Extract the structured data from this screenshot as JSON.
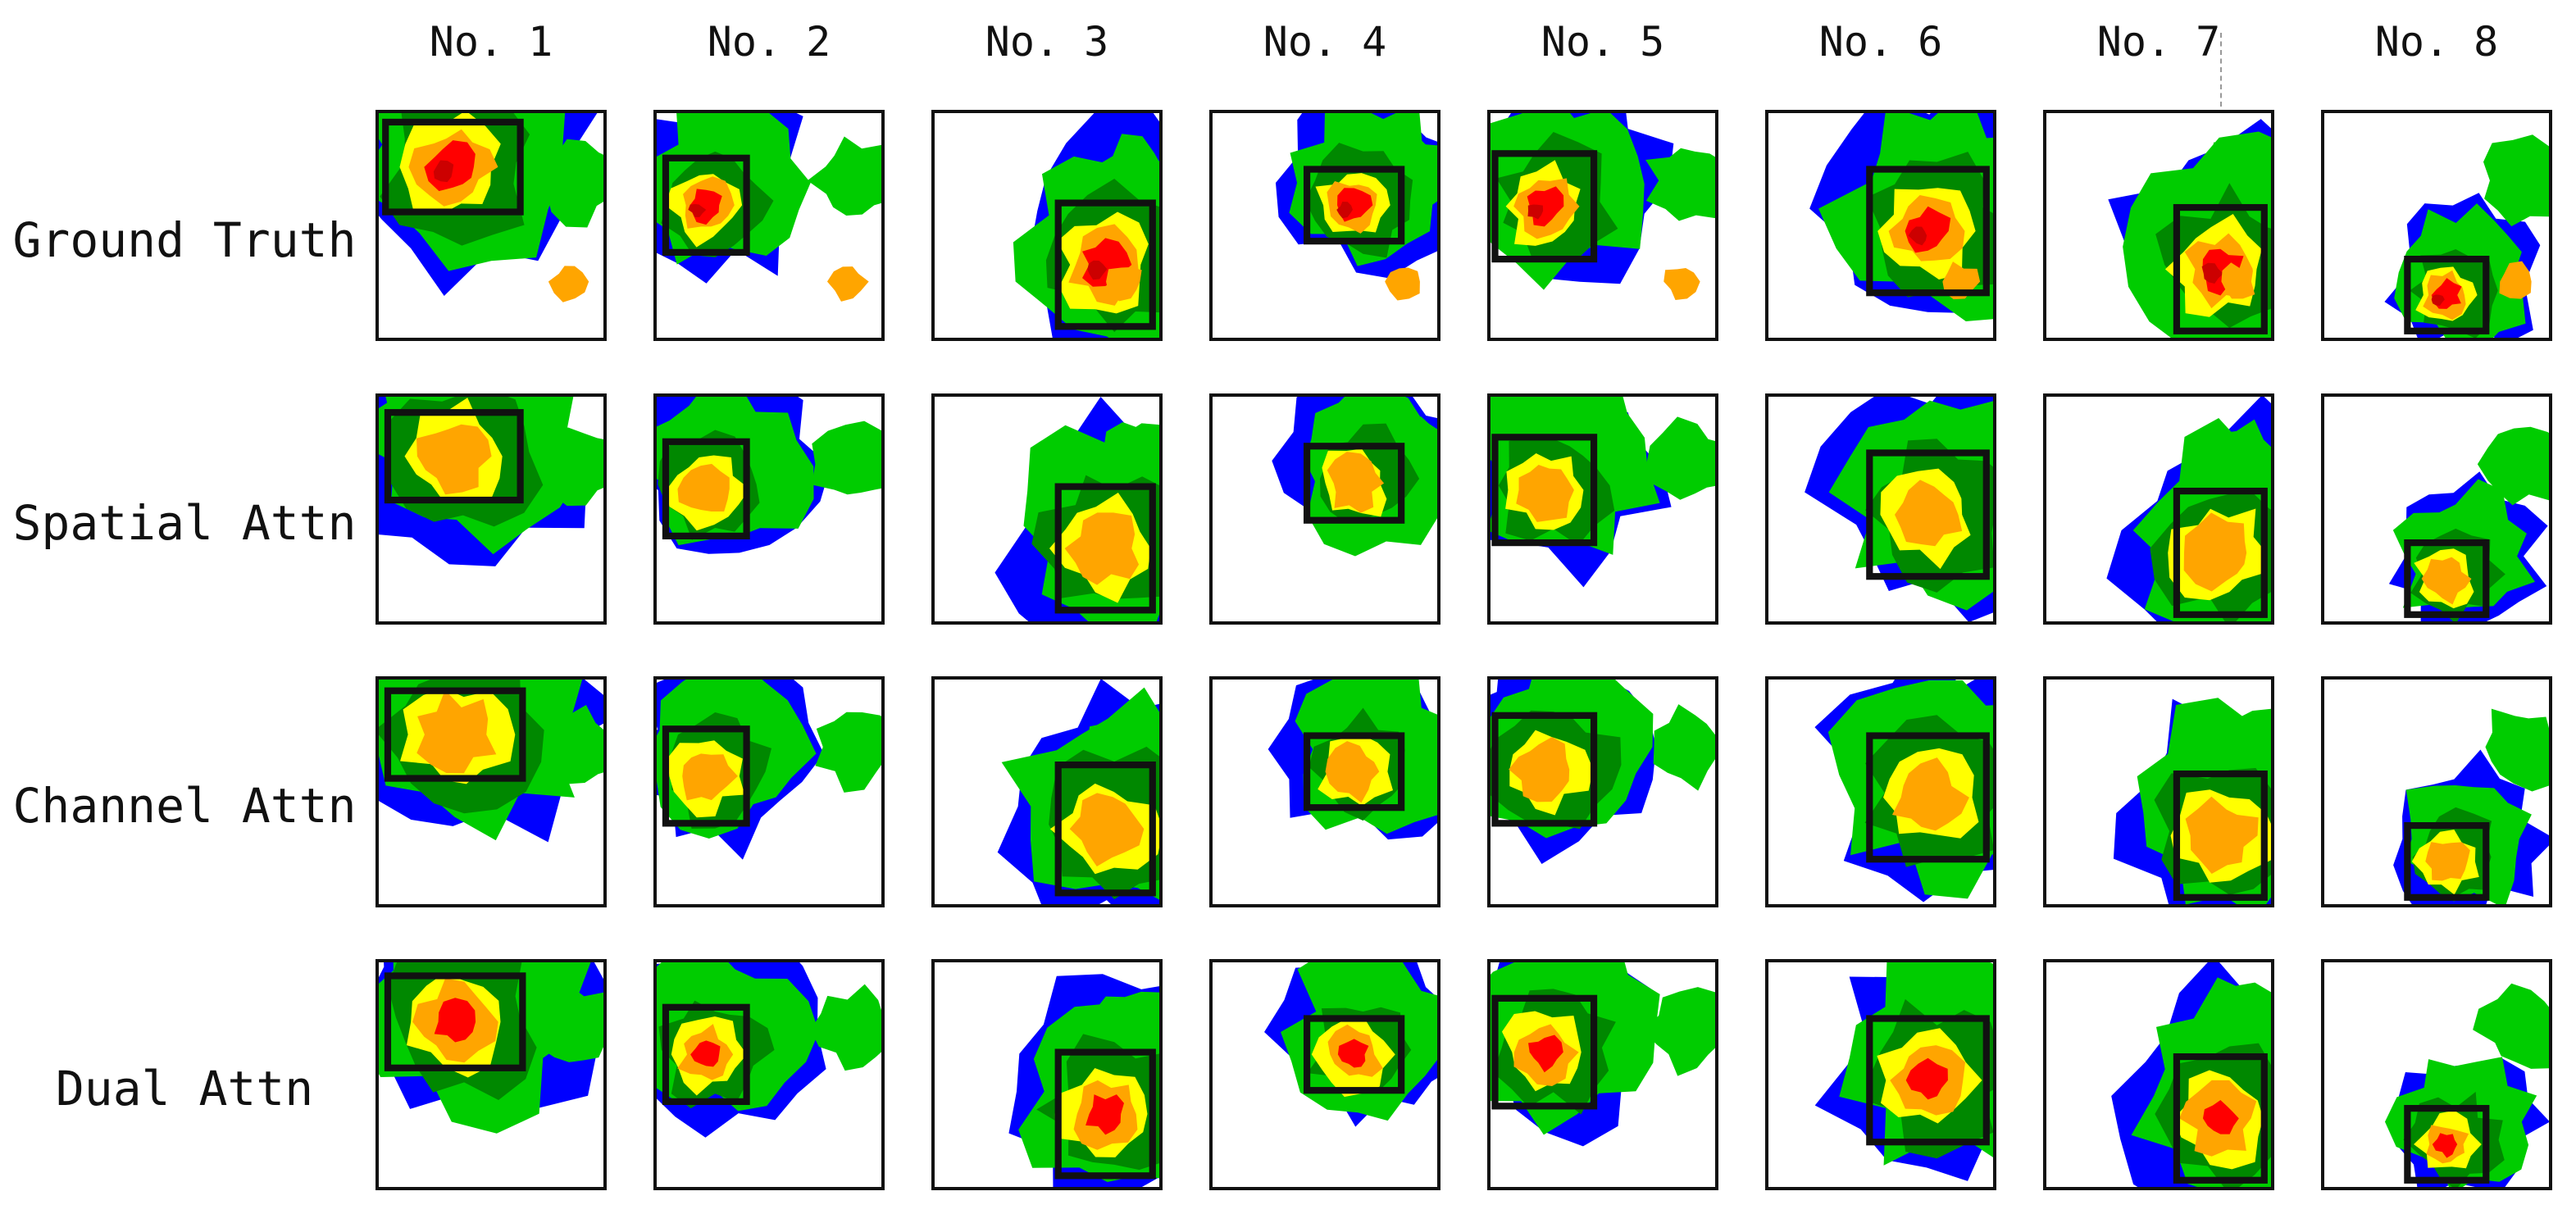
{
  "columns": [
    "No. 1",
    "No. 2",
    "No. 3",
    "No. 4",
    "No. 5",
    "No. 6",
    "No. 7",
    "No. 8"
  ],
  "rows": [
    "Ground Truth",
    "Spatial Attn",
    "Channel Attn",
    "Dual Attn"
  ],
  "colors": {
    "blue": "#0000ff",
    "light_green": "#00cc00",
    "dark_green": "#008800",
    "yellow": "#ffff00",
    "orange": "#ffa500",
    "red": "#ff0000",
    "dark_red": "#cc0000",
    "box": "#111111",
    "background": "#ffffff"
  },
  "icons": [
    "radar-echo-map"
  ]
}
